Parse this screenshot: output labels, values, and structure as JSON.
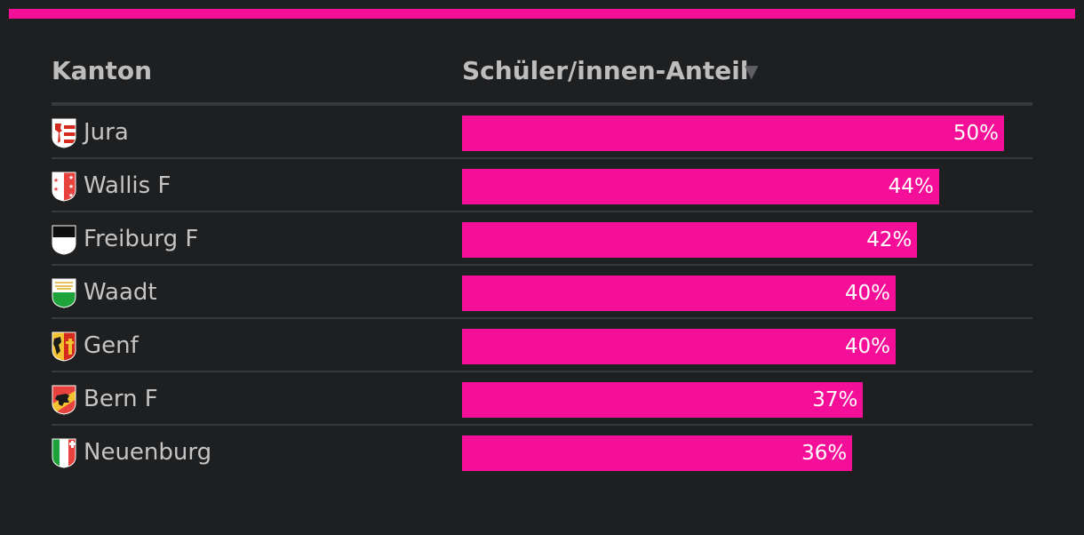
{
  "colors": {
    "accent": "#f50e98",
    "background": "#1e1f21",
    "divider": "#38393b"
  },
  "table": {
    "col_canton": "Kanton",
    "col_share": "Schüler/innen-Anteil",
    "sort_icon": "▼"
  },
  "chart_data": {
    "type": "bar",
    "orientation": "horizontal",
    "categories": [
      "Jura",
      "Wallis F",
      "Freiburg F",
      "Waadt",
      "Genf",
      "Bern F",
      "Neuenburg"
    ],
    "values": [
      50,
      44,
      42,
      40,
      40,
      37,
      36
    ],
    "value_labels": [
      "50%",
      "44%",
      "42%",
      "40%",
      "40%",
      "37%",
      "36%"
    ],
    "icons": [
      "jura-flag-icon",
      "wallis-flag-icon",
      "freiburg-flag-icon",
      "waadt-flag-icon",
      "genf-flag-icon",
      "bern-flag-icon",
      "neuenburg-flag-icon"
    ],
    "xlim": [
      0,
      50
    ],
    "bar_color": "#f50e98",
    "xlabel": "",
    "ylabel": "Kanton",
    "title": ""
  }
}
